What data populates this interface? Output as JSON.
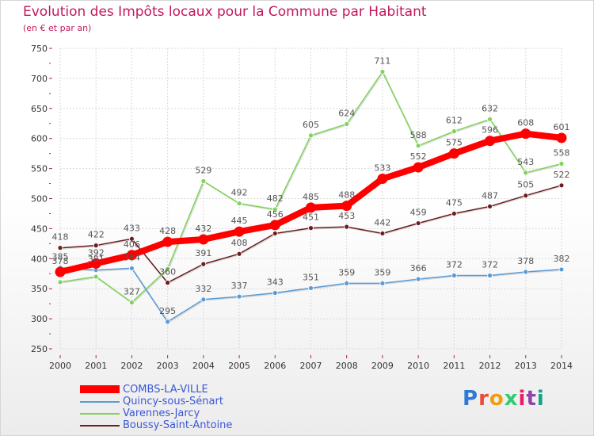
{
  "title": "Evolution des Impôts locaux pour la Commune par Habitant",
  "subtitle": "(en € et par an)",
  "logo": {
    "text": "Proxiti",
    "colors": [
      "#2e7bd6",
      "#e84c3d",
      "#f39c12",
      "#2ecc71",
      "#e91e63",
      "#8e44ad",
      "#16a085"
    ]
  },
  "colors": {
    "title": "#c2185b",
    "axis_text": "#333333",
    "label_text": "#555555"
  },
  "chart_data": {
    "type": "line",
    "title": "Evolution des Impôts locaux pour la Commune par Habitant",
    "subtitle": "(en € et par an)",
    "xlabel": "",
    "ylabel": "",
    "ylim": [
      250,
      750
    ],
    "yticks": [
      250,
      300,
      350,
      400,
      450,
      500,
      550,
      600,
      650,
      700,
      750
    ],
    "x": [
      "2000",
      "2001",
      "2002",
      "2003",
      "2004",
      "2005",
      "2006",
      "2007",
      "2008",
      "2009",
      "2010",
      "2011",
      "2012",
      "2013",
      "2014"
    ],
    "grid": true,
    "legend_position": "bottom-left",
    "series": [
      {
        "name": "COMBS-LA-VILLE",
        "color": "#ff0000",
        "values": [
          378,
          392,
          406,
          428,
          432,
          445,
          456,
          485,
          488,
          533,
          552,
          575,
          596,
          608,
          601
        ],
        "labels": [
          "378",
          "392",
          "406",
          "428",
          "432",
          "445",
          "456",
          "485",
          "488",
          "533",
          "552",
          "575",
          "596",
          "608",
          "601"
        ]
      },
      {
        "name": "Quincy-sous-Sénart",
        "color": "#5b9bd5",
        "values": [
          385,
          381,
          384,
          295,
          332,
          337,
          343,
          351,
          359,
          359,
          366,
          372,
          372,
          378,
          382
        ],
        "labels": [
          "385",
          "381",
          "384",
          "295",
          "332",
          "337",
          "343",
          "351",
          "359",
          "359",
          "366",
          "372",
          "372",
          "378",
          "382"
        ]
      },
      {
        "name": "Varennes-Jarcy",
        "color": "#7fd35a",
        "values": [
          361,
          370,
          327,
          383,
          529,
          492,
          482,
          605,
          624,
          711,
          588,
          612,
          632,
          543,
          558
        ],
        "labels": [
          "",
          "",
          "327",
          "",
          "529",
          "492",
          "482",
          "605",
          "624",
          "711",
          "588",
          "612",
          "632",
          "543",
          "558"
        ]
      },
      {
        "name": "Boussy-Saint-Antoine",
        "color": "#6b1e1e",
        "values": [
          418,
          422,
          433,
          360,
          391,
          408,
          442,
          451,
          453,
          442,
          459,
          475,
          487,
          505,
          522
        ],
        "labels": [
          "418",
          "422",
          "433",
          "360",
          "391",
          "408",
          "",
          "451",
          "453",
          "442",
          "459",
          "475",
          "487",
          "505",
          "522"
        ]
      }
    ]
  }
}
